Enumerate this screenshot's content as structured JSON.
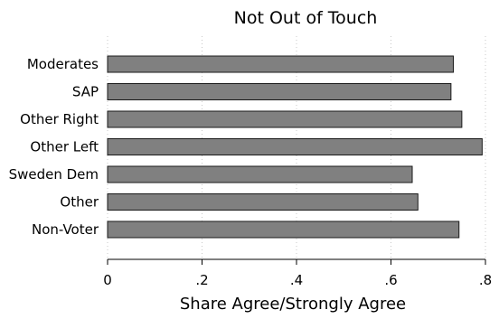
{
  "chart_data": {
    "type": "bar",
    "orientation": "horizontal",
    "title": "Not Out of Touch",
    "xlabel": "Share Agree/Strongly Agree",
    "ylabel": "",
    "categories": [
      "Moderates",
      "SAP",
      "Other Right",
      "Other Left",
      "Sweden Dem",
      "Other",
      "Non-Voter"
    ],
    "values": [
      0.732,
      0.727,
      0.75,
      0.793,
      0.645,
      0.657,
      0.744
    ],
    "xlim": [
      0,
      0.8
    ],
    "xticks": [
      0,
      0.2,
      0.4,
      0.6,
      0.8
    ],
    "xtick_labels": [
      "0",
      ".2",
      ".4",
      ".6",
      ".8"
    ],
    "grid": "vertical dotted",
    "bar_color": "#808080",
    "bar_edge_color": "#1a1a1a"
  }
}
